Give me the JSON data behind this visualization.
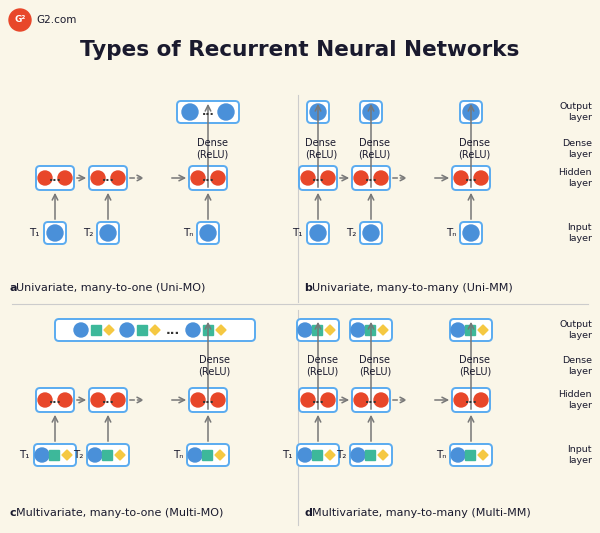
{
  "title": "Types of Recurrent Neural Networks",
  "bg_color": "#faf6e8",
  "blue": "#4a90d9",
  "red": "#e8472a",
  "green": "#3db89a",
  "yellow": "#f5c842",
  "border_blue": "#5aabf0",
  "text_dark": "#1a1a2e",
  "g2_red": "#e8472a",
  "label_a": "Univariate, many-to-one (Uni-MO)",
  "label_b": "Univariate, many-to-many (Uni-MM)",
  "label_c": "Multivariate, many-to-one (Multi-MO)",
  "label_d": "Multivariate, many-to-many (Multi-MM)",
  "layer_labels": [
    "Output\nlayer",
    "Dense\nlayer",
    "Hidden\nlayer",
    "Input\nlayer"
  ]
}
